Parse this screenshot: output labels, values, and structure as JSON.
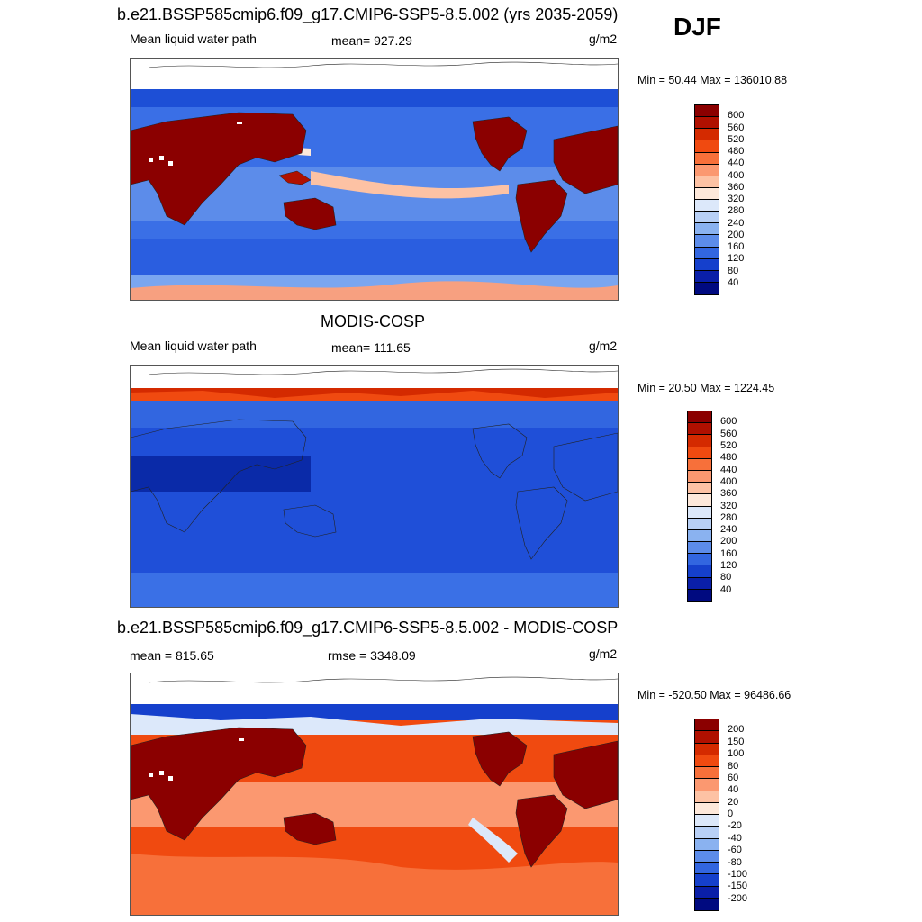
{
  "season": "DJF",
  "panels": [
    {
      "title": "b.e21.BSSP585cmip6.f09_g17.CMIP6-SSP5-8.5.002 (yrs 2035-2059)",
      "left_label": "Mean liquid water path",
      "center_label": "mean= 927.29",
      "units": "g/m2",
      "minmax": "Min =  50.44 Max = 136010.88",
      "colorbar_labels": [
        "600",
        "560",
        "520",
        "480",
        "440",
        "400",
        "360",
        "320",
        "280",
        "240",
        "200",
        "160",
        "120",
        "80",
        "40"
      ],
      "colorbar_colors": [
        "#8b0000",
        "#b01000",
        "#d42a00",
        "#f04a10",
        "#f7703a",
        "#fb9870",
        "#fdc2a4",
        "#fde8da",
        "#dce8fa",
        "#b8d0f6",
        "#8ab2f0",
        "#5c8cea",
        "#3266e0",
        "#1540cc",
        "#0a1fa8",
        "#000a80"
      ]
    },
    {
      "title": "MODIS-COSP",
      "left_label": "Mean liquid water path",
      "center_label": "mean= 111.65",
      "units": "g/m2",
      "minmax": "Min =  20.50 Max = 1224.45",
      "colorbar_labels": [
        "600",
        "560",
        "520",
        "480",
        "440",
        "400",
        "360",
        "320",
        "280",
        "240",
        "200",
        "160",
        "120",
        "80",
        "40"
      ],
      "colorbar_colors": [
        "#8b0000",
        "#b01000",
        "#d42a00",
        "#f04a10",
        "#f7703a",
        "#fb9870",
        "#fdc2a4",
        "#fde8da",
        "#dce8fa",
        "#b8d0f6",
        "#8ab2f0",
        "#5c8cea",
        "#3266e0",
        "#1540cc",
        "#0a1fa8",
        "#000a80"
      ]
    },
    {
      "title": "b.e21.BSSP585cmip6.f09_g17.CMIP6-SSP5-8.5.002 - MODIS-COSP",
      "left_label": "mean = 815.65",
      "center_label": "rmse = 3348.09",
      "units": "g/m2",
      "minmax": "Min = -520.50 Max = 96486.66",
      "colorbar_labels": [
        "200",
        "150",
        "100",
        "80",
        "60",
        "40",
        "20",
        "0",
        "-20",
        "-40",
        "-60",
        "-80",
        "-100",
        "-150",
        "-200"
      ],
      "colorbar_colors": [
        "#8b0000",
        "#b01000",
        "#d42a00",
        "#f04a10",
        "#f7703a",
        "#fb9870",
        "#fdc2a4",
        "#fde8da",
        "#dce8fa",
        "#b8d0f6",
        "#8ab2f0",
        "#5c8cea",
        "#3266e0",
        "#1540cc",
        "#0a1fa8",
        "#000a80"
      ]
    }
  ]
}
